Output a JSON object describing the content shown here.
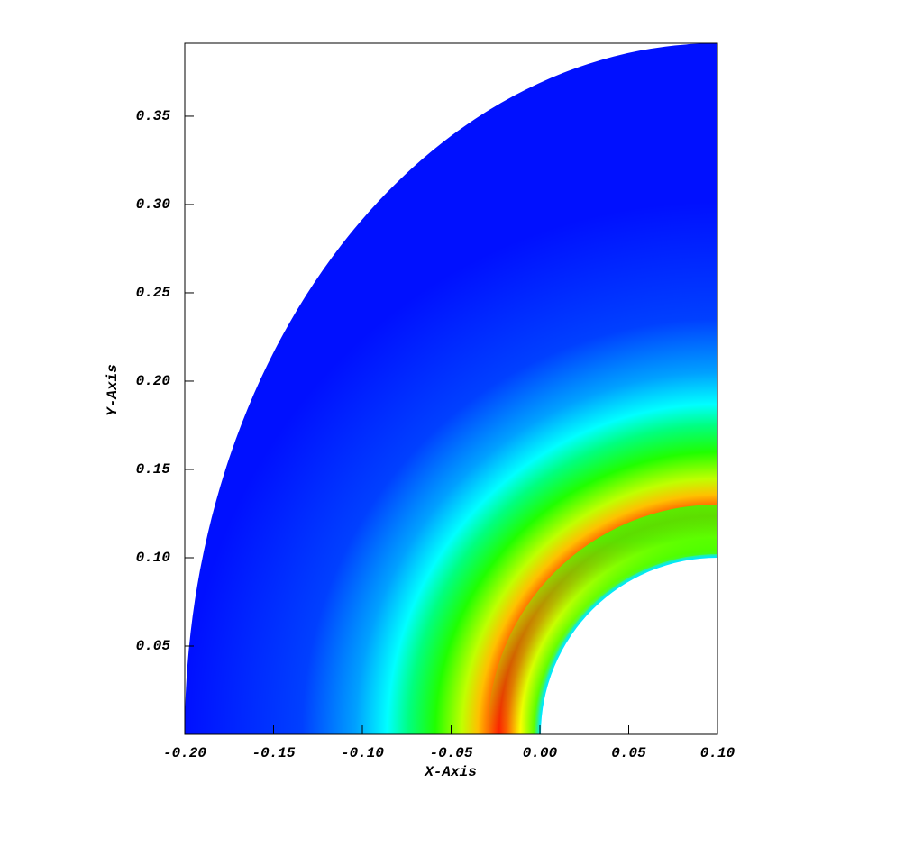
{
  "chart_data": {
    "type": "pseudocolor",
    "x_label": "X-Axis",
    "y_label": "Y-Axis",
    "xlim": [
      -0.2,
      0.1
    ],
    "ylim": [
      0,
      0.3913
    ],
    "xticks": [
      {
        "value": -0.2,
        "label": "-0.20"
      },
      {
        "value": -0.15,
        "label": "-0.15"
      },
      {
        "value": -0.1,
        "label": "-0.10"
      },
      {
        "value": -0.05,
        "label": "-0.05"
      },
      {
        "value": 0,
        "label": "0.00"
      },
      {
        "value": 0.05,
        "label": "0.05"
      },
      {
        "value": 0.1,
        "label": "0.10"
      }
    ],
    "yticks": [
      {
        "value": 0.05,
        "label": "0.05"
      },
      {
        "value": 0.1,
        "label": "0.10"
      },
      {
        "value": 0.15,
        "label": "0.15"
      },
      {
        "value": 0.2,
        "label": "0.20"
      },
      {
        "value": 0.25,
        "label": "0.25"
      },
      {
        "value": 0.3,
        "label": "0.30"
      },
      {
        "value": 0.35,
        "label": "0.35"
      }
    ]
  }
}
